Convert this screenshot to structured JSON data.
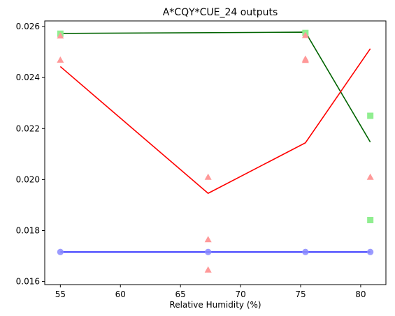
{
  "chart_data": {
    "type": "scatter",
    "title": "A*CQY*CUE_24 outputs",
    "xlabel": "Relative Humidity (%)",
    "ylabel": "",
    "xlim": [
      53.7,
      82.1
    ],
    "ylim": [
      0.01588,
      0.02622
    ],
    "xticks": [
      55,
      60,
      65,
      70,
      75,
      80
    ],
    "yticks": [
      0.016,
      0.018,
      0.02,
      0.022,
      0.024,
      0.026
    ],
    "ytick_labels": [
      "0.016",
      "0.018",
      "0.020",
      "0.022",
      "0.024",
      "0.026"
    ],
    "grid": false,
    "series": [
      {
        "marker": "circle",
        "color": "#8a8aff",
        "line_color": "#0000ff",
        "points": [
          [
            55.0,
            0.01716
          ],
          [
            67.3,
            0.01716
          ],
          [
            75.4,
            0.01716
          ],
          [
            80.8,
            0.01716
          ]
        ],
        "fit": [
          [
            55.0,
            0.01716
          ],
          [
            67.3,
            0.01716
          ],
          [
            75.4,
            0.01716
          ],
          [
            80.8,
            0.01716
          ]
        ]
      },
      {
        "marker": "square",
        "color": "#90ee90",
        "line_color": "#006400",
        "points": [
          [
            55.0,
            0.02572
          ],
          [
            75.4,
            0.02575
          ],
          [
            80.8,
            0.0225
          ],
          [
            80.8,
            0.01841
          ]
        ],
        "fit": [
          [
            55.0,
            0.02573
          ],
          [
            75.4,
            0.02578
          ],
          [
            80.8,
            0.02147
          ]
        ]
      },
      {
        "marker": "triangle",
        "color": "#ff9999",
        "line_color": "#ff0000",
        "points": [
          [
            55.0,
            0.02564
          ],
          [
            55.0,
            0.02469
          ],
          [
            67.3,
            0.0201
          ],
          [
            67.3,
            0.01765
          ],
          [
            67.3,
            0.01646
          ],
          [
            75.4,
            0.02566
          ],
          [
            75.4,
            0.02473
          ],
          [
            75.4,
            0.02468
          ],
          [
            80.8,
            0.0201
          ]
        ],
        "fit": [
          [
            55.0,
            0.02443
          ],
          [
            67.3,
            0.01946
          ],
          [
            75.4,
            0.02144
          ],
          [
            80.8,
            0.02513
          ]
        ]
      }
    ]
  }
}
